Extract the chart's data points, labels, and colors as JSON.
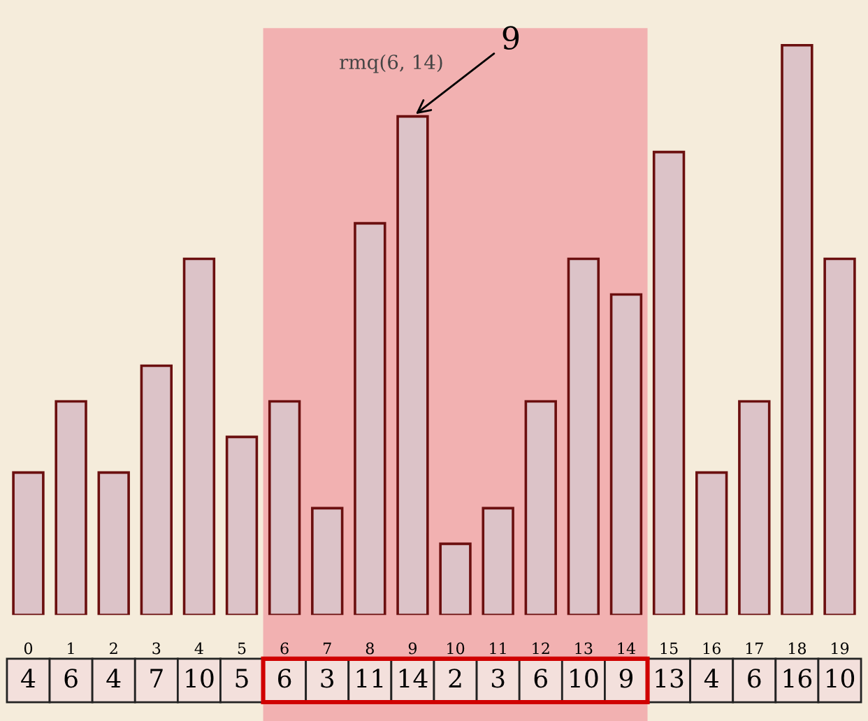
{
  "chart_data": {
    "type": "bar",
    "categories": [
      "0",
      "1",
      "2",
      "3",
      "4",
      "5",
      "6",
      "7",
      "8",
      "9",
      "10",
      "11",
      "12",
      "13",
      "14",
      "15",
      "16",
      "17",
      "18",
      "19"
    ],
    "values": [
      4,
      6,
      4,
      7,
      10,
      5,
      6,
      3,
      11,
      14,
      2,
      3,
      6,
      10,
      9,
      13,
      4,
      6,
      16,
      10
    ],
    "color": "#dcc3c8",
    "data_labels": true,
    "tick_labels": "x",
    "bands": [
      {
        "axis": "x",
        "from": "6",
        "to": "14",
        "label": "rmq(6, 14)",
        "color": "#f2b1b1"
      }
    ],
    "annotations": [
      {
        "text": "9",
        "x": "9",
        "y": 14
      }
    ]
  }
}
